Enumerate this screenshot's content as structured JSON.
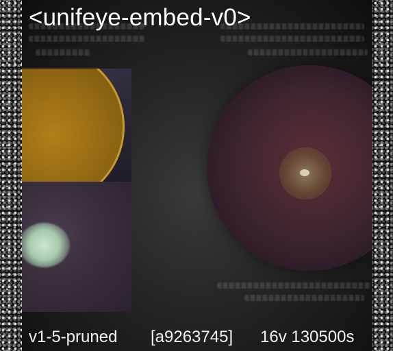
{
  "header": {
    "title": "<unifeye-embed-v0>"
  },
  "footer": {
    "variant": "v1-5-pruned",
    "hash": "[a9263745]",
    "stats": "16v 130500s"
  },
  "colors": {
    "background": "#000000",
    "text": "#ffffff"
  }
}
